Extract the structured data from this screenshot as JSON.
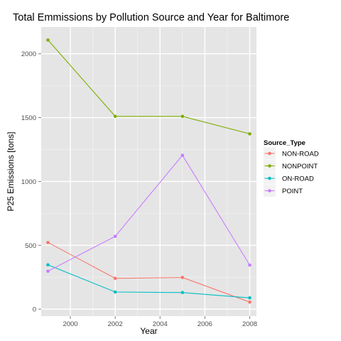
{
  "chart_data": {
    "type": "line",
    "title": "Total Emmissions by Pollution Source and Year for Baltimore",
    "xlabel": "Year",
    "ylabel": "P25 Emissions [tons]",
    "x": [
      1999,
      2002,
      2005,
      2008
    ],
    "xlim": [
      1998.7,
      2008.3
    ],
    "ylim": [
      -55,
      2210
    ],
    "xticks": [
      2000,
      2002,
      2004,
      2006,
      2008
    ],
    "xtick_labels": [
      "2000",
      "2002",
      "2004",
      "2006",
      "2008"
    ],
    "yticks": [
      0,
      500,
      1000,
      1500,
      2000
    ],
    "ytick_labels": [
      "0",
      "500",
      "1000",
      "1500",
      "2000"
    ],
    "grid": true,
    "legend_title": "Source_Type",
    "legend_position": "right",
    "series": [
      {
        "name": "NON-ROAD",
        "color": "#F8766D",
        "values": [
          522,
          241,
          248,
          55
        ]
      },
      {
        "name": "NONPOINT",
        "color": "#7CAE00",
        "values": [
          2108,
          1510,
          1510,
          1373
        ]
      },
      {
        "name": "ON-ROAD",
        "color": "#00BFC4",
        "values": [
          347,
          134,
          130,
          88
        ]
      },
      {
        "name": "POINT",
        "color": "#C77CFF",
        "values": [
          297,
          570,
          1205,
          345
        ]
      }
    ]
  },
  "colors": {
    "panel_background": "#E5E5E5",
    "major_grid": "#FFFFFF",
    "minor_grid": "#F2F2F2"
  }
}
